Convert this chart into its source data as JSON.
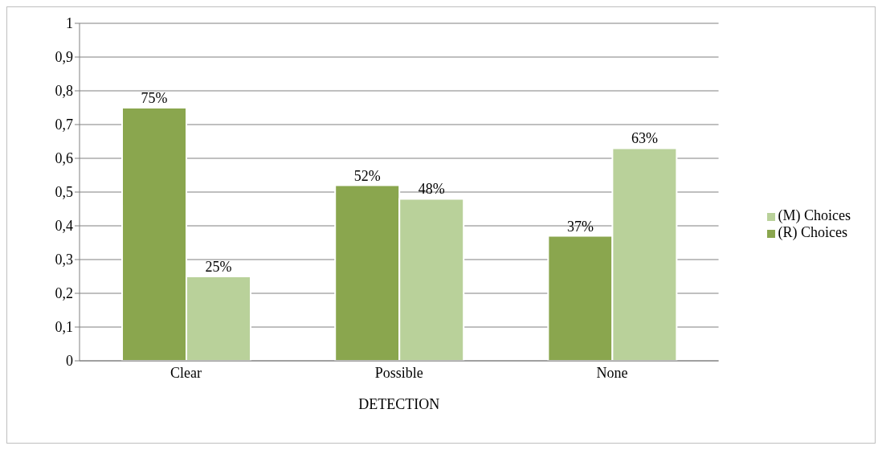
{
  "chart_data": {
    "type": "bar",
    "xlabel": "DETECTION",
    "categories": [
      "Clear",
      "Possible",
      "None"
    ],
    "series": [
      {
        "name": "(R) Choices",
        "color": "#8aa64e",
        "values": [
          0.75,
          0.52,
          0.37
        ],
        "value_labels": [
          "75%",
          "52%",
          "37%"
        ]
      },
      {
        "name": "(M) Choices",
        "color": "#b9d19a",
        "values": [
          0.25,
          0.48,
          0.63
        ],
        "value_labels": [
          "25%",
          "48%",
          "63%"
        ]
      }
    ],
    "ylim": [
      0,
      1
    ],
    "yticks": [
      0,
      {
        "value": 0.1,
        "label": "0,1"
      },
      {
        "value": 0.2,
        "label": "0,2"
      },
      {
        "value": 0.3,
        "label": "0,3"
      },
      {
        "value": 0.4,
        "label": "0,4"
      },
      {
        "value": 0.5,
        "label": "0,5"
      },
      {
        "value": 0.6,
        "label": "0,6"
      },
      {
        "value": 0.7,
        "label": "0,7"
      },
      {
        "value": 0.8,
        "label": "0,8"
      },
      {
        "value": 0.9,
        "label": "0,9"
      },
      1
    ],
    "grid": "y",
    "legend": "right"
  }
}
